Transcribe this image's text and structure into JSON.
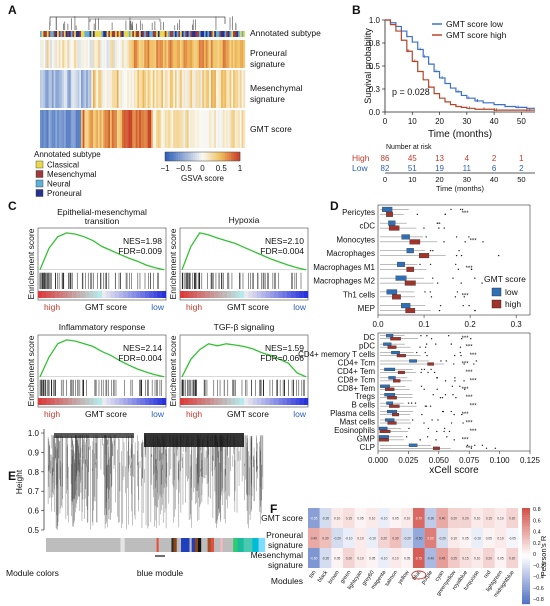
{
  "panels": {
    "A": {
      "letter": "A",
      "row_labels": [
        "Annotated subtype",
        "Proneural",
        "signature",
        "Mesenchymal",
        "signature",
        "GMT score"
      ],
      "legend_title": "Annotated subtype",
      "legend_items": [
        {
          "label": "Classical",
          "color": "#e8d84a"
        },
        {
          "label": "Mesenchymal",
          "color": "#a0393b"
        },
        {
          "label": "Neural",
          "color": "#5fb0d8"
        },
        {
          "label": "Proneural",
          "color": "#27318f"
        }
      ],
      "colorbar_ticks": [
        "−1",
        "−0.5",
        "0",
        "0.5",
        "1"
      ],
      "colorbar_label": "GSVA score"
    },
    "B": {
      "letter": "B",
      "legend": [
        {
          "label": "GMT score low",
          "color": "#3b6fcf"
        },
        {
          "label": "GMT score high",
          "color": "#b5462a"
        }
      ],
      "p_value": "p = 0.028",
      "risk_title": "Number at risk",
      "risk_rows": [
        {
          "label": "High",
          "color": "#c0392b",
          "values": [
            "86",
            "45",
            "13",
            "4",
            "2",
            "1"
          ]
        },
        {
          "label": "Low",
          "color": "#2c5fbf",
          "values": [
            "82",
            "51",
            "19",
            "11",
            "6",
            "2"
          ]
        }
      ]
    },
    "C": {
      "letter": "C",
      "plots": [
        {
          "title_lines": [
            "Epithelial-mesenchymal",
            "transition"
          ],
          "nes": "NES=1.98",
          "fdr": "FDR=0.009"
        },
        {
          "title_lines": [
            "Hypoxia"
          ],
          "nes": "NES=2.10",
          "fdr": "FDR=0.004"
        },
        {
          "title_lines": [
            "Inflammatory response"
          ],
          "nes": "NES=2.14",
          "fdr": "FDR=0.004"
        },
        {
          "title_lines": [
            "TGF-β signaling"
          ],
          "nes": "NES=1.59",
          "fdr": "FDR=0.066"
        }
      ],
      "ylabel": [
        "Enrichement score",
        "Enrichement score",
        "Enrichement score",
        "Enrichement score"
      ],
      "x_high": "high",
      "x_mid": "GMT score",
      "x_low": "low"
    },
    "D": {
      "letter": "D",
      "legend_title": "GMT score",
      "legend_items": [
        {
          "label": "low",
          "color": "#2f6fb5"
        },
        {
          "label": "high",
          "color": "#a0332a"
        }
      ],
      "top_cells": [
        "Pericytes",
        "cDC",
        "Monocytes",
        "Macrophages",
        "Macrophages M1",
        "Macrophages M2",
        "Th1 cells",
        "MEP"
      ],
      "bottom_cells": [
        "DC",
        "pDC",
        "CD4+ memory T cells",
        "CD4+ Tcm",
        "CD4+ Tem",
        "CD8+ Tcm",
        "CD8+ Tem",
        "Tregs",
        "B cells",
        "Plasma cells",
        "Mast cells",
        "Eosinophils",
        "GMP",
        "CLP"
      ],
      "top_ticks": [
        "0.0",
        "0.1",
        "0.2",
        "0.3"
      ],
      "bottom_ticks": [
        "0.000",
        "0.025",
        "0.050",
        "0.075",
        "0.100",
        "0.125"
      ],
      "xlabel": "xCell score"
    },
    "E": {
      "letter": "E",
      "ylabel": "Height",
      "ticks": [
        "1.0",
        "0.9",
        "0.8",
        "0.7",
        "0.6",
        "0.5"
      ],
      "module_colors_label": "Module colors",
      "blue_module_label": "blue module"
    },
    "F": {
      "letter": "F",
      "rows": [
        "GMT score",
        "Proneural",
        "signature",
        "Mesenchymal",
        "signature"
      ],
      "modules_label": "Modules",
      "modules": [
        "tan",
        "black",
        "brown",
        "green",
        "lightcyan",
        "grey60",
        "magenta",
        "salmon",
        "yellow",
        "blue",
        "purple",
        "cyan",
        "greenyellow",
        "royalblue",
        "turquoise",
        "red",
        "lightgreen",
        "midnightblue"
      ],
      "colorbar_ticks": [
        "0.8",
        "0.6",
        "0.4",
        "0.2",
        "0",
        "−0.2",
        "−0.4",
        "−0.6",
        "−0.8"
      ],
      "colorbar_label": "Pearson's R"
    }
  },
  "chart_data": [
    {
      "type": "line",
      "panel": "B",
      "xlabel": "Time (months)",
      "ylabel": "Survival probability",
      "xlim": [
        0,
        55
      ],
      "ylim": [
        0,
        1
      ],
      "xticks": [
        0,
        10,
        20,
        30,
        40,
        50
      ],
      "yticks": [
        0,
        0.25,
        0.5,
        0.75,
        1
      ],
      "series": [
        {
          "name": "GMT score low",
          "x": [
            0,
            2,
            4,
            6,
            8,
            10,
            12,
            14,
            16,
            18,
            20,
            22,
            24,
            26,
            28,
            30,
            33,
            36,
            40,
            44,
            48,
            52,
            55
          ],
          "y": [
            1.0,
            0.97,
            0.93,
            0.88,
            0.82,
            0.76,
            0.68,
            0.6,
            0.52,
            0.44,
            0.37,
            0.31,
            0.26,
            0.22,
            0.18,
            0.15,
            0.12,
            0.1,
            0.08,
            0.06,
            0.05,
            0.04,
            0.04
          ]
        },
        {
          "name": "GMT score high",
          "x": [
            0,
            2,
            4,
            6,
            8,
            10,
            12,
            14,
            16,
            18,
            20,
            22,
            24,
            26,
            28,
            30,
            33,
            36,
            40,
            44,
            48,
            52,
            55
          ],
          "y": [
            1.0,
            0.95,
            0.88,
            0.78,
            0.66,
            0.55,
            0.44,
            0.35,
            0.27,
            0.2,
            0.15,
            0.11,
            0.08,
            0.06,
            0.05,
            0.04,
            0.03,
            0.03,
            0.02,
            0.02,
            0.02,
            0.02,
            0.02
          ]
        }
      ]
    }
  ]
}
